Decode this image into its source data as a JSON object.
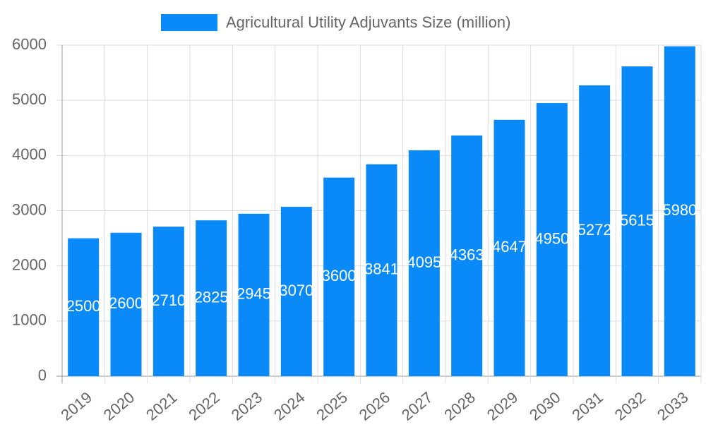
{
  "chart_data": {
    "type": "bar",
    "categories": [
      "2019",
      "2020",
      "2021",
      "2022",
      "2023",
      "2024",
      "2025",
      "2026",
      "2027",
      "2028",
      "2029",
      "2030",
      "2031",
      "2032",
      "2033"
    ],
    "series": [
      {
        "name": "Agricultural Utility Adjuvants Size (million)",
        "color": "#0a8af8",
        "values": [
          2500,
          2600,
          2710,
          2825,
          2945,
          3070,
          3600,
          3841,
          4095,
          4363,
          4647,
          4950,
          5272,
          5615,
          5980
        ]
      }
    ],
    "ylim": [
      0,
      6000
    ],
    "yticks": [
      0,
      1000,
      2000,
      3000,
      4000,
      5000,
      6000
    ],
    "grid": true,
    "legend": "top"
  }
}
